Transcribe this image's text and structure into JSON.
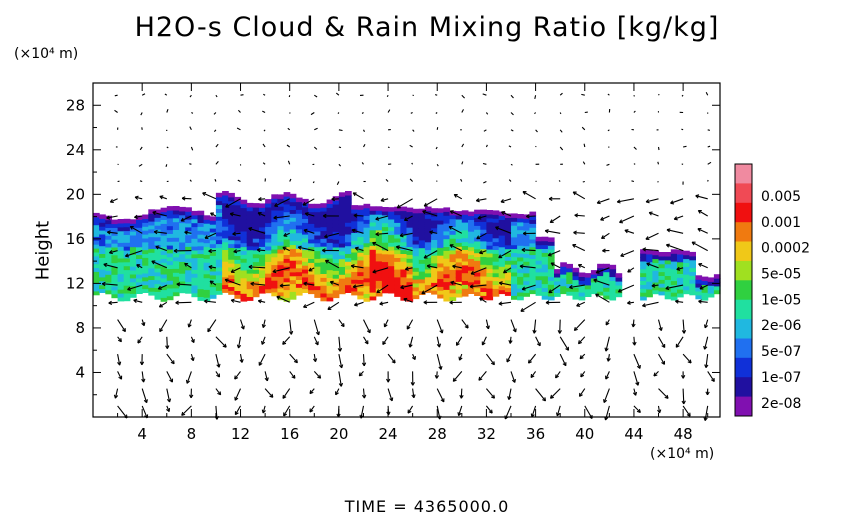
{
  "chart_data": {
    "type": "heatmap",
    "title": "H2O-s Cloud & Rain Mixing Ratio [kg/kg]",
    "ylabel": "Height",
    "y_unit": "(×10⁴ m)",
    "x_unit": "(×10⁴ m)",
    "footer": "TIME  =  4365000.0",
    "xlim": [
      0,
      51
    ],
    "ylim": [
      0,
      30
    ],
    "x_ticks": [
      "4",
      "8",
      "12",
      "16",
      "20",
      "24",
      "28",
      "32",
      "36",
      "40",
      "44",
      "48"
    ],
    "y_ticks": [
      "4",
      "8",
      "12",
      "16",
      "20",
      "24",
      "28"
    ],
    "colorbar": {
      "labels": [
        "0.005",
        "0.001",
        "0.0002",
        "5e-05",
        "1e-05",
        "2e-06",
        "5e-07",
        "1e-07",
        "2e-08"
      ],
      "colors": [
        "#f08aa0",
        "#f04a55",
        "#f01010",
        "#f07a10",
        "#f0c818",
        "#a0e020",
        "#30d040",
        "#20e0a0",
        "#20b8e0",
        "#2070f0",
        "#1030d8",
        "#2010a0",
        "#8010b0"
      ]
    }
  }
}
